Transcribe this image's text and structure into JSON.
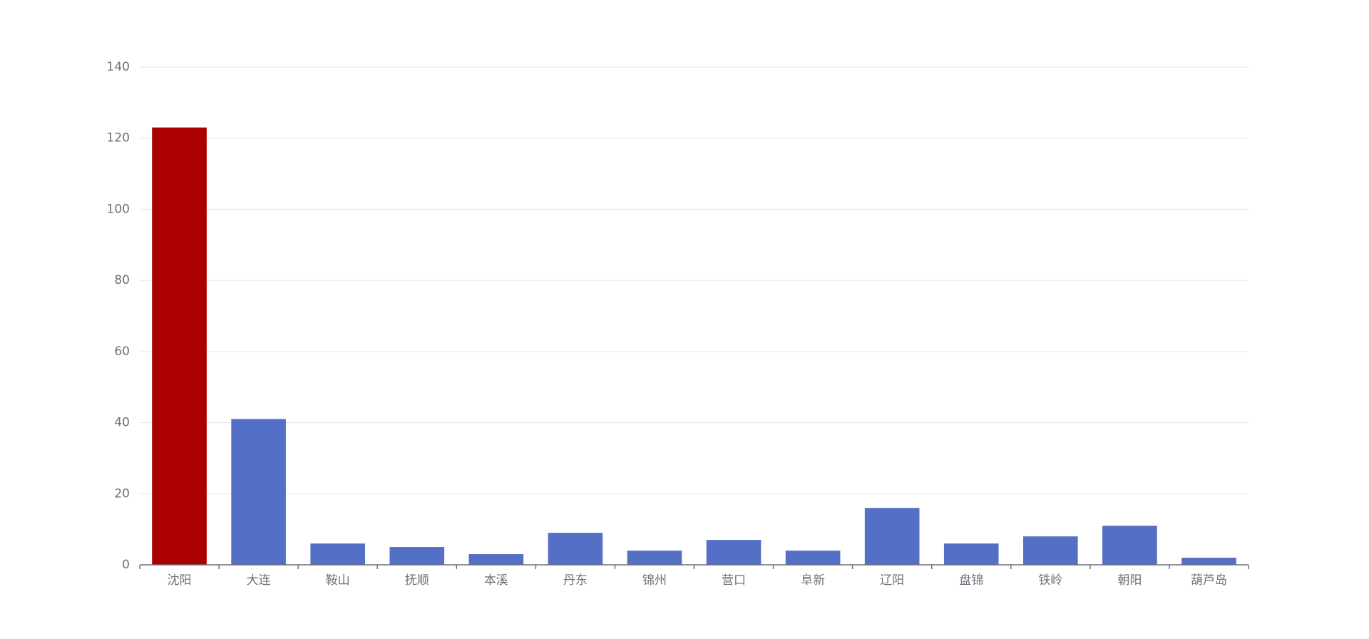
{
  "chart_data": {
    "type": "bar",
    "categories": [
      "沈阳",
      "大连",
      "鞍山",
      "抚顺",
      "本溪",
      "丹东",
      "锦州",
      "营口",
      "阜新",
      "辽阳",
      "盘锦",
      "铁岭",
      "朝阳",
      "葫芦岛"
    ],
    "values": [
      123,
      41,
      6,
      5,
      3,
      9,
      4,
      7,
      4,
      16,
      6,
      8,
      11,
      2
    ],
    "colors": [
      "#aa0000",
      "#5470c6",
      "#5470c6",
      "#5470c6",
      "#5470c6",
      "#5470c6",
      "#5470c6",
      "#5470c6",
      "#5470c6",
      "#5470c6",
      "#5470c6",
      "#5470c6",
      "#5470c6",
      "#5470c6"
    ],
    "ylim": [
      0,
      140
    ],
    "yticks": [
      0,
      20,
      40,
      60,
      80,
      100,
      120,
      140
    ],
    "grid": true
  }
}
